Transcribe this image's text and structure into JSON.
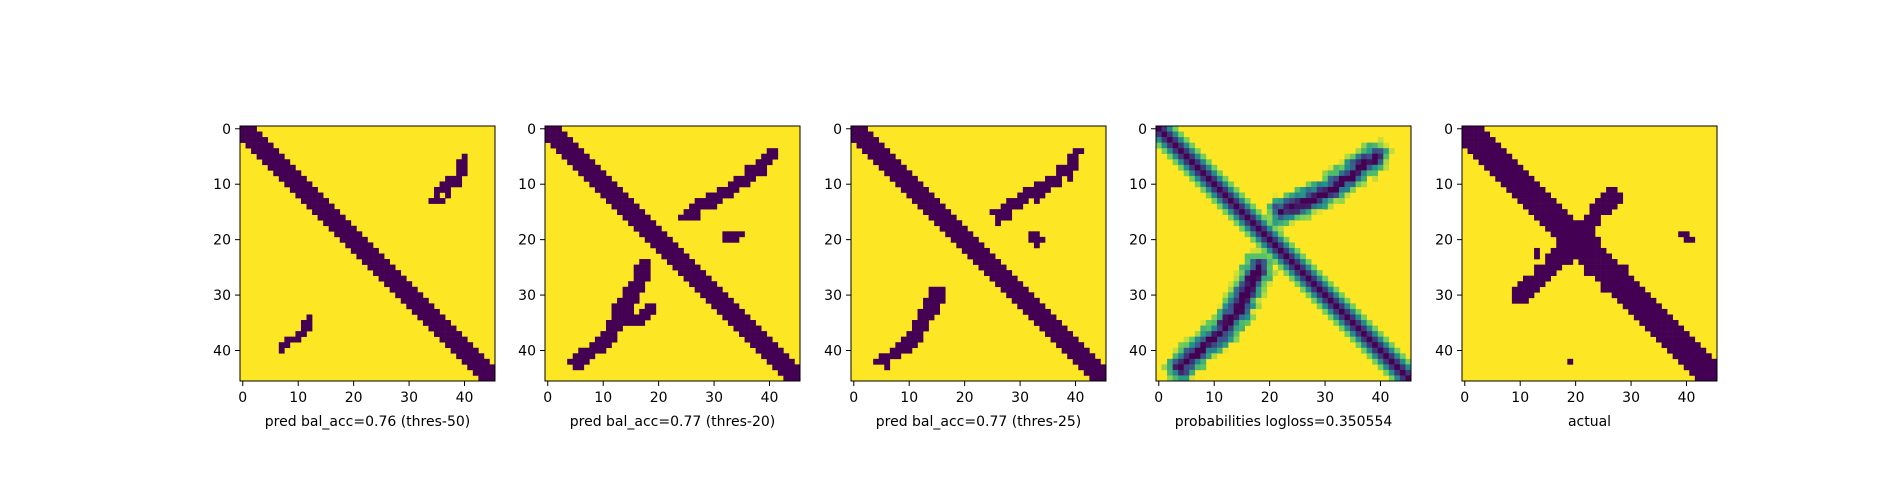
{
  "colors": {
    "background": "#440154",
    "foreground": "#fde725",
    "mid": "#21918c"
  },
  "chart_data": [
    {
      "type": "heatmap",
      "xlabel": "pred bal_acc=0.76 (thres-50)",
      "grid_size": 46,
      "ticks": [
        0,
        10,
        20,
        30,
        40
      ],
      "xlim": [
        0,
        45
      ],
      "ylim": [
        45,
        0
      ],
      "binary": true,
      "features": [
        {
          "kind": "diagonal",
          "from": [
            0,
            0
          ],
          "to": [
            45,
            45
          ],
          "width": 2.4
        },
        {
          "kind": "stroke",
          "points": [
            [
              35,
              12
            ],
            [
              37,
              10
            ],
            [
              39,
              8
            ],
            [
              40,
              6
            ]
          ],
          "width": 1.2
        },
        {
          "kind": "stroke",
          "points": [
            [
              7,
              39
            ],
            [
              9,
              38
            ],
            [
              10,
              37
            ],
            [
              12,
              35
            ]
          ],
          "width": 1.1
        }
      ]
    },
    {
      "type": "heatmap",
      "xlabel": "pred bal_acc=0.77 (thres-20)",
      "grid_size": 46,
      "ticks": [
        0,
        10,
        20,
        30,
        40
      ],
      "xlim": [
        0,
        45
      ],
      "ylim": [
        45,
        0
      ],
      "binary": true,
      "features": [
        {
          "kind": "diagonal",
          "from": [
            0,
            0
          ],
          "to": [
            45,
            45
          ],
          "width": 2.4
        },
        {
          "kind": "stroke",
          "points": [
            [
              25,
              16
            ],
            [
              29,
              13
            ],
            [
              33,
              11
            ],
            [
              37,
              8
            ],
            [
              40,
              5
            ]
          ],
          "width": 1.4
        },
        {
          "kind": "stroke",
          "points": [
            [
              5,
              42
            ],
            [
              8,
              40
            ],
            [
              11,
              37
            ],
            [
              13,
              33
            ],
            [
              15,
              30
            ],
            [
              17,
              25
            ]
          ],
          "width": 1.6
        },
        {
          "kind": "stroke",
          "points": [
            [
              32,
              20
            ],
            [
              35,
              19
            ]
          ],
          "width": 1.0
        },
        {
          "kind": "stroke",
          "points": [
            [
              15,
              35
            ],
            [
              19,
              32
            ]
          ],
          "width": 1.0
        }
      ]
    },
    {
      "type": "heatmap",
      "xlabel": "pred bal_acc=0.77 (thres-25)",
      "grid_size": 46,
      "ticks": [
        0,
        10,
        20,
        30,
        40
      ],
      "xlim": [
        0,
        45
      ],
      "ylim": [
        45,
        0
      ],
      "binary": true,
      "features": [
        {
          "kind": "diagonal",
          "from": [
            0,
            0
          ],
          "to": [
            45,
            45
          ],
          "width": 2.4
        },
        {
          "kind": "stroke",
          "points": [
            [
              26,
              16
            ],
            [
              30,
              13
            ],
            [
              34,
              11
            ],
            [
              38,
              8
            ],
            [
              40,
              5
            ]
          ],
          "width": 1.3
        },
        {
          "kind": "stroke",
          "points": [
            [
              5,
              42
            ],
            [
              8,
              40
            ],
            [
              11,
              37
            ],
            [
              13,
              34
            ],
            [
              15,
              30
            ]
          ],
          "width": 1.5
        },
        {
          "kind": "stroke",
          "points": [
            [
              32,
              20
            ],
            [
              34,
              20
            ]
          ],
          "width": 0.9
        }
      ]
    },
    {
      "type": "heatmap",
      "xlabel": "probabilities logloss=0.350554",
      "grid_size": 46,
      "ticks": [
        0,
        10,
        20,
        30,
        40
      ],
      "xlim": [
        0,
        45
      ],
      "ylim": [
        45,
        0
      ],
      "binary": false,
      "features": [
        {
          "kind": "diagonal",
          "from": [
            0,
            0
          ],
          "to": [
            45,
            45
          ],
          "width": 2.6
        },
        {
          "kind": "stroke",
          "points": [
            [
              22,
              15
            ],
            [
              27,
              13
            ],
            [
              31,
              11
            ],
            [
              35,
              8
            ],
            [
              39,
              5
            ]
          ],
          "width": 3.0
        },
        {
          "kind": "stroke",
          "points": [
            [
              4,
              43
            ],
            [
              7,
              40
            ],
            [
              11,
              37
            ],
            [
              14,
              33
            ],
            [
              16,
              29
            ],
            [
              18,
              25
            ]
          ],
          "width": 3.2
        }
      ]
    },
    {
      "type": "heatmap",
      "xlabel": "actual",
      "grid_size": 46,
      "ticks": [
        0,
        10,
        20,
        30,
        40
      ],
      "xlim": [
        0,
        45
      ],
      "ylim": [
        45,
        0
      ],
      "binary": true,
      "features": [
        {
          "kind": "diagonal",
          "from": [
            0,
            0
          ],
          "to": [
            45,
            45
          ],
          "width": 2.6
        },
        {
          "kind": "stroke",
          "points": [
            [
              10,
              30
            ],
            [
              15,
              25
            ],
            [
              20,
              20
            ],
            [
              24,
              15
            ],
            [
              27,
              12
            ]
          ],
          "width": 1.8
        },
        {
          "kind": "blob",
          "center": [
            20,
            21
          ],
          "radius": 4.0
        },
        {
          "kind": "blob",
          "center": [
            28,
            28
          ],
          "radius": 3.2
        },
        {
          "kind": "blob",
          "center": [
            24,
            24
          ],
          "radius": 2.8
        },
        {
          "kind": "blob",
          "center": [
            40,
            19
          ],
          "radius": 1.0
        },
        {
          "kind": "blob",
          "center": [
            19,
            42
          ],
          "radius": 0.9
        },
        {
          "kind": "blob",
          "center": [
            13,
            23
          ],
          "radius": 0.8
        }
      ]
    }
  ]
}
